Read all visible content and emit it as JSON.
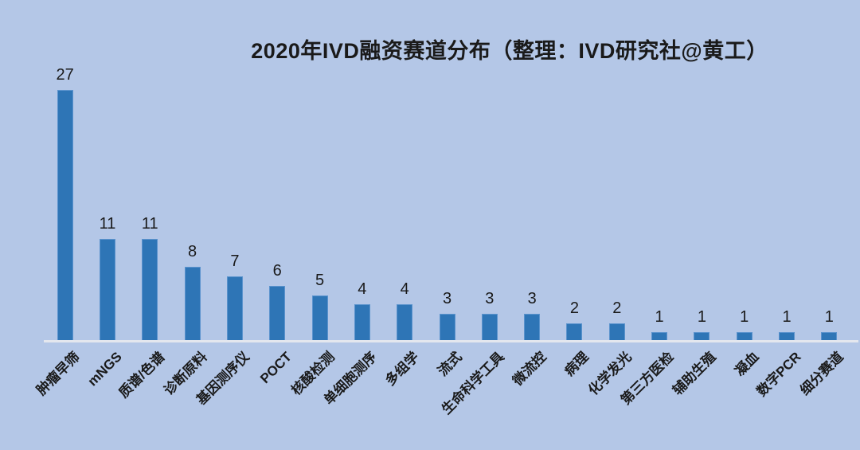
{
  "page": {
    "background_color": "#b4c7e7",
    "text_color": "#1a1a1a"
  },
  "chart_data": {
    "type": "bar",
    "title": "2020年IVD融资赛道分布（整理：IVD研究社@黄工）",
    "categories": [
      "肿瘤早筛",
      "mNGS",
      "质谱/色谱",
      "诊断原料",
      "基因测序仪",
      "POCT",
      "核酸检测",
      "单细胞测序",
      "多组学",
      "流式",
      "生命科学工具",
      "微流控",
      "病理",
      "化学发光",
      "第三方医检",
      "辅助生殖",
      "凝血",
      "数字PCR",
      "细分赛道"
    ],
    "values": [
      27,
      11,
      11,
      8,
      7,
      6,
      5,
      4,
      4,
      3,
      3,
      3,
      2,
      2,
      1,
      1,
      1,
      1,
      1
    ],
    "xlabel": "",
    "ylabel": "",
    "ylim": [
      0,
      30
    ],
    "grid": false,
    "legend": false,
    "data_labels": true,
    "xlabel_rotation_deg": 45,
    "bar_color": "#2e75b6",
    "bar_border_color": "#5b93cd",
    "axis_line_color": "#e4e7ee"
  }
}
